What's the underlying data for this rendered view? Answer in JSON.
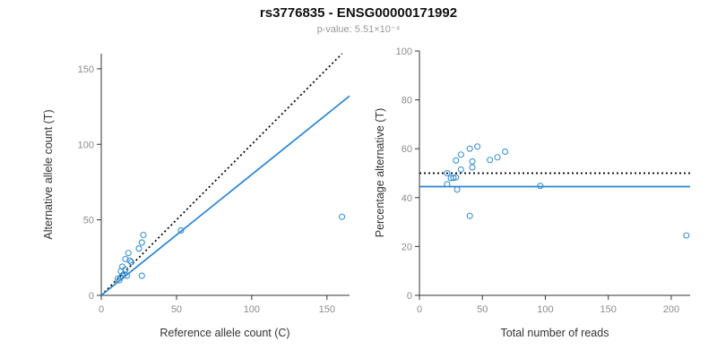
{
  "title": "rs3776835 - ENSG00000171992",
  "subtitle": "p-value: 5.51×10⁻⁴",
  "colors": {
    "point": "#3d93cf",
    "regression_line": "#2b85d0",
    "identity_line": "#000000",
    "axis": "#333333",
    "tick_label": "#8c8c8c",
    "axis_label": "#333333",
    "title": "#111111",
    "subtitle": "#999999"
  },
  "chart_data": [
    {
      "type": "scatter",
      "name": "allele-counts",
      "xlabel": "Reference allele count (C)",
      "ylabel": "Alternative allele count (T)",
      "xlim": [
        0,
        165
      ],
      "ylim": [
        0,
        160
      ],
      "xticks": [
        0,
        50,
        100,
        150
      ],
      "yticks": [
        0,
        50,
        100,
        150
      ],
      "x": [
        11,
        12,
        13,
        13,
        14,
        14,
        15,
        16,
        16,
        17,
        18,
        19,
        20,
        25,
        27,
        27,
        28,
        53,
        160
      ],
      "y": [
        11,
        10,
        12,
        16,
        13,
        19,
        14,
        17,
        24,
        13,
        28,
        23,
        22,
        31,
        13,
        35,
        40,
        43,
        52
      ],
      "grid": false,
      "legend": "none",
      "lines": [
        {
          "name": "identity-line",
          "style": "dotted",
          "color": "#000000",
          "x1": 0,
          "y1": 0,
          "x2": 160,
          "y2": 160
        },
        {
          "name": "regression-line",
          "style": "solid",
          "color": "#2b85d0",
          "x1": 0,
          "y1": 0,
          "x2": 165,
          "y2": 132
        }
      ]
    },
    {
      "type": "scatter",
      "name": "percentage-vs-reads",
      "xlabel": "Total number of reads",
      "ylabel": "Percentage alternative (T)",
      "xlim": [
        0,
        215
      ],
      "ylim": [
        0,
        100
      ],
      "xticks": [
        0,
        50,
        100,
        150,
        200
      ],
      "yticks": [
        0,
        20,
        40,
        60,
        80,
        100
      ],
      "x": [
        22,
        22,
        25,
        29,
        27,
        33,
        29,
        33,
        40,
        30,
        46,
        42,
        42,
        56,
        40,
        62,
        68,
        96,
        212
      ],
      "y": [
        50.0,
        45.5,
        48.0,
        55.2,
        48.1,
        57.6,
        48.3,
        51.5,
        60.0,
        43.3,
        60.9,
        54.8,
        52.4,
        55.4,
        32.5,
        56.5,
        58.8,
        44.8,
        24.5
      ],
      "grid": false,
      "legend": "none",
      "lines": [
        {
          "name": "null-percentage-line",
          "style": "dotted",
          "color": "#000000",
          "x1": 0,
          "y1": 50,
          "x2": 215,
          "y2": 50
        },
        {
          "name": "mean-percentage-line",
          "style": "solid",
          "color": "#2b85d0",
          "x1": 0,
          "y1": 44.5,
          "x2": 215,
          "y2": 44.5
        }
      ]
    }
  ]
}
